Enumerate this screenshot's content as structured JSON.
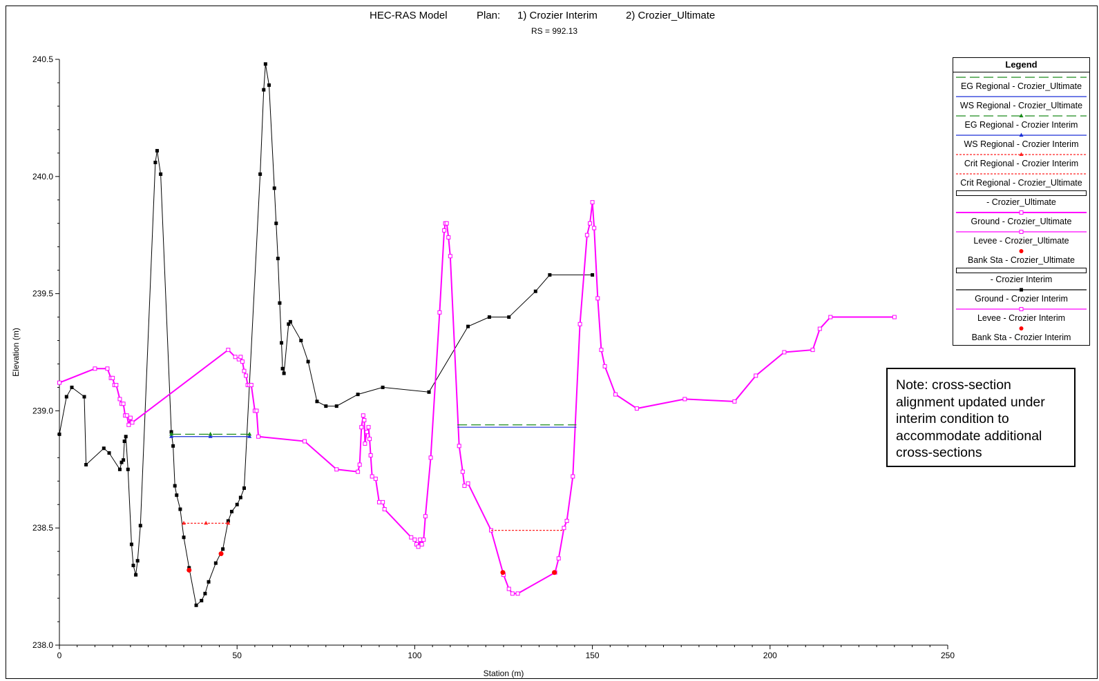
{
  "header": {
    "model_label": "HEC-RAS Model",
    "plan_label": "Plan:",
    "plan1_label": "1) Crozier Interim",
    "plan2_label": "2) Crozier_Ultimate",
    "rs_label": "RS = 992.13"
  },
  "note": {
    "text": "Note: cross-section alignment updated under interim condition to accommodate additional cross-sections"
  },
  "legend": {
    "title": "Legend",
    "entries": [
      {
        "label": "EG Regional - Crozier_Ultimate",
        "color": "#1a8a1a",
        "style": "dashed",
        "marker": "none"
      },
      {
        "label": "WS Regional - Crozier_Ultimate",
        "color": "#1a2fd6",
        "style": "solid",
        "marker": "none"
      },
      {
        "label": "EG Regional - Crozier Interim",
        "color": "#1a8a1a",
        "style": "dashed",
        "marker": "triangle"
      },
      {
        "label": "WS Regional - Crozier Interim",
        "color": "#1a2fd6",
        "style": "solid",
        "marker": "triangle"
      },
      {
        "label": "Crit Regional - Crozier Interim",
        "color": "#ff2020",
        "style": "dotted",
        "marker": "triangle"
      },
      {
        "label": "Crit Regional - Crozier_Ultimate",
        "color": "#ff2020",
        "style": "dotted",
        "marker": "none"
      },
      {
        "label": "- Crozier_Ultimate",
        "color": "#000000",
        "style": "box",
        "marker": "none"
      },
      {
        "label": "Ground - Crozier_Ultimate",
        "color": "#ff00ff",
        "style": "thick",
        "marker": "square-open"
      },
      {
        "label": "Levee - Crozier_Ultimate",
        "color": "#ff00ff",
        "style": "solid",
        "marker": "square-open"
      },
      {
        "label": "Bank Sta - Crozier_Ultimate",
        "color": "#ff0000",
        "style": "none",
        "marker": "circle"
      },
      {
        "label": "- Crozier Interim",
        "color": "#000000",
        "style": "box",
        "marker": "none"
      },
      {
        "label": "Ground - Crozier Interim",
        "color": "#000000",
        "style": "solid",
        "marker": "square"
      },
      {
        "label": "Levee - Crozier Interim",
        "color": "#ff00ff",
        "style": "solid",
        "marker": "square-open"
      },
      {
        "label": "Bank Sta - Crozier Interim",
        "color": "#ff0000",
        "style": "none",
        "marker": "circle"
      }
    ]
  },
  "chart_data": {
    "type": "line",
    "xlabel": "Station (m)",
    "ylabel": "Elevation (m)",
    "xlim": [
      0,
      250
    ],
    "ylim": [
      238.0,
      240.5
    ],
    "xticks": [
      0,
      50,
      100,
      150,
      200,
      250
    ],
    "yticks": [
      238.0,
      238.5,
      239.0,
      239.5,
      240.0,
      240.5
    ],
    "legend_position": "top-right",
    "series": [
      {
        "name": "Ground - Crozier Interim",
        "color": "#000000",
        "marker": "square",
        "points": [
          [
            0,
            238.9
          ],
          [
            2,
            239.06
          ],
          [
            3.5,
            239.1
          ],
          [
            7,
            239.06
          ],
          [
            7.5,
            238.77
          ],
          [
            12.5,
            238.84
          ],
          [
            14,
            238.82
          ],
          [
            17,
            238.75
          ],
          [
            17.5,
            238.78
          ],
          [
            18,
            238.79
          ],
          [
            18.3,
            238.87
          ],
          [
            18.7,
            238.89
          ],
          [
            19.3,
            238.75
          ],
          [
            20.3,
            238.43
          ],
          [
            20.8,
            238.34
          ],
          [
            21.5,
            238.3
          ],
          [
            22,
            238.36
          ],
          [
            22.8,
            238.51
          ],
          [
            27,
            240.06
          ],
          [
            27.5,
            240.11
          ],
          [
            28.5,
            240.01
          ],
          [
            31.5,
            238.91
          ],
          [
            32,
            238.85
          ],
          [
            32.5,
            238.68
          ],
          [
            33,
            238.64
          ],
          [
            34,
            238.58
          ],
          [
            35,
            238.46
          ],
          [
            36.5,
            238.33
          ],
          [
            38.5,
            238.17
          ],
          [
            40,
            238.19
          ],
          [
            41,
            238.22
          ],
          [
            42,
            238.27
          ],
          [
            44,
            238.35
          ],
          [
            46,
            238.41
          ],
          [
            47.5,
            238.53
          ],
          [
            48.5,
            238.57
          ],
          [
            50,
            238.6
          ],
          [
            51,
            238.63
          ],
          [
            52,
            238.67
          ],
          [
            56.5,
            240.01
          ],
          [
            57.5,
            240.37
          ],
          [
            58,
            240.48
          ],
          [
            59,
            240.39
          ],
          [
            60.5,
            239.95
          ],
          [
            61,
            239.8
          ],
          [
            61.5,
            239.65
          ],
          [
            62,
            239.46
          ],
          [
            62.5,
            239.29
          ],
          [
            62.8,
            239.18
          ],
          [
            63.2,
            239.16
          ],
          [
            64.5,
            239.37
          ],
          [
            65,
            239.38
          ],
          [
            68,
            239.3
          ],
          [
            70,
            239.21
          ],
          [
            72.5,
            239.04
          ],
          [
            75,
            239.02
          ],
          [
            78,
            239.02
          ],
          [
            84,
            239.07
          ],
          [
            91,
            239.1
          ],
          [
            104,
            239.08
          ],
          [
            115,
            239.36
          ],
          [
            121,
            239.4
          ],
          [
            126.5,
            239.4
          ],
          [
            134,
            239.51
          ],
          [
            138,
            239.58
          ],
          [
            150,
            239.58
          ]
        ]
      },
      {
        "name": "Ground - Crozier_Ultimate",
        "color": "#ff00ff",
        "marker": "square-open",
        "points": [
          [
            0,
            239.12
          ],
          [
            10,
            239.18
          ],
          [
            13.5,
            239.18
          ],
          [
            14.5,
            239.14
          ],
          [
            15,
            239.14
          ],
          [
            15.5,
            239.11
          ],
          [
            16,
            239.11
          ],
          [
            17,
            239.05
          ],
          [
            17.5,
            239.03
          ],
          [
            18,
            239.03
          ],
          [
            18.5,
            238.98
          ],
          [
            19,
            238.98
          ],
          [
            19.5,
            238.94
          ],
          [
            20,
            238.97
          ],
          [
            20.5,
            238.95
          ],
          [
            47.5,
            239.26
          ],
          [
            49.5,
            239.23
          ],
          [
            50.5,
            239.22
          ],
          [
            51,
            239.23
          ],
          [
            51.5,
            239.21
          ],
          [
            52,
            239.17
          ],
          [
            52.5,
            239.15
          ],
          [
            53,
            239.11
          ],
          [
            53.5,
            239.11
          ],
          [
            54,
            239.11
          ],
          [
            55,
            239.0
          ],
          [
            55.5,
            239.0
          ],
          [
            56,
            238.89
          ],
          [
            69,
            238.87
          ],
          [
            78,
            238.75
          ],
          [
            84,
            238.74
          ],
          [
            84.5,
            238.77
          ],
          [
            85,
            238.93
          ],
          [
            85.5,
            238.98
          ],
          [
            85.8,
            238.96
          ],
          [
            86,
            238.86
          ],
          [
            86.5,
            238.91
          ],
          [
            87,
            238.93
          ],
          [
            87.3,
            238.88
          ],
          [
            87.6,
            238.81
          ],
          [
            88,
            238.72
          ],
          [
            89,
            238.71
          ],
          [
            90,
            238.61
          ],
          [
            91,
            238.61
          ],
          [
            91.5,
            238.58
          ],
          [
            99,
            238.46
          ],
          [
            100,
            238.45
          ],
          [
            100.5,
            238.43
          ],
          [
            101,
            238.42
          ],
          [
            101.5,
            238.45
          ],
          [
            102,
            238.43
          ],
          [
            102.5,
            238.45
          ],
          [
            103,
            238.55
          ],
          [
            104.5,
            238.8
          ],
          [
            107,
            239.42
          ],
          [
            108.3,
            239.77
          ],
          [
            108.6,
            239.8
          ],
          [
            109,
            239.8
          ],
          [
            109.5,
            239.74
          ],
          [
            110,
            239.66
          ],
          [
            112.5,
            238.85
          ],
          [
            113.5,
            238.74
          ],
          [
            114,
            238.68
          ],
          [
            115,
            238.69
          ],
          [
            121.5,
            238.49
          ],
          [
            125,
            238.3
          ],
          [
            126.5,
            238.24
          ],
          [
            127.5,
            238.22
          ],
          [
            129,
            238.22
          ],
          [
            139.5,
            238.31
          ],
          [
            140.5,
            238.37
          ],
          [
            142,
            238.5
          ],
          [
            142.8,
            238.53
          ],
          [
            144.5,
            238.72
          ],
          [
            146.5,
            239.37
          ],
          [
            148.5,
            239.75
          ],
          [
            149.3,
            239.8
          ],
          [
            150,
            239.89
          ],
          [
            150.5,
            239.78
          ],
          [
            151.5,
            239.48
          ],
          [
            152.5,
            239.26
          ],
          [
            153.5,
            239.19
          ],
          [
            156.5,
            239.07
          ],
          [
            162.5,
            239.01
          ],
          [
            176,
            239.05
          ],
          [
            190,
            239.04
          ],
          [
            196,
            239.15
          ],
          [
            204,
            239.25
          ],
          [
            212,
            239.26
          ],
          [
            214,
            239.35
          ],
          [
            217,
            239.4
          ],
          [
            235,
            239.4
          ]
        ]
      },
      {
        "name": "WS Regional - Crozier Interim",
        "color": "#1a2fd6",
        "marker": "triangle",
        "segments": [
          [
            [
              31.5,
              238.89
            ],
            [
              53.5,
              238.89
            ]
          ]
        ]
      },
      {
        "name": "EG Regional - Crozier Interim",
        "color": "#1a8a1a",
        "marker": "triangle",
        "dashed": true,
        "segments": [
          [
            [
              31.5,
              238.9
            ],
            [
              53.5,
              238.9
            ]
          ]
        ]
      },
      {
        "name": "WS Regional - Crozier_Ultimate",
        "color": "#1a2fd6",
        "segments": [
          [
            [
              112,
              238.93
            ],
            [
              145.5,
              238.93
            ]
          ]
        ]
      },
      {
        "name": "EG Regional - Crozier_Ultimate",
        "color": "#1a8a1a",
        "dashed": true,
        "segments": [
          [
            [
              112,
              238.94
            ],
            [
              145.5,
              238.94
            ]
          ]
        ]
      },
      {
        "name": "Crit Regional - Crozier Interim",
        "color": "#ff2020",
        "marker": "triangle",
        "dotted": true,
        "segments": [
          [
            [
              35,
              238.52
            ],
            [
              47.5,
              238.52
            ]
          ]
        ]
      },
      {
        "name": "Crit Regional - Crozier_Ultimate",
        "color": "#ff2020",
        "dotted": true,
        "segments": [
          [
            [
              121.5,
              238.49
            ],
            [
              142,
              238.49
            ]
          ]
        ]
      },
      {
        "name": "Bank Sta - Crozier Interim",
        "color": "#ff0000",
        "marker": "circle",
        "points": [
          [
            36.5,
            238.32
          ],
          [
            45.5,
            238.39
          ]
        ]
      },
      {
        "name": "Bank Sta - Crozier_Ultimate",
        "color": "#ff0000",
        "marker": "circle",
        "points": [
          [
            124.8,
            238.31
          ],
          [
            139.3,
            238.31
          ]
        ]
      }
    ]
  }
}
